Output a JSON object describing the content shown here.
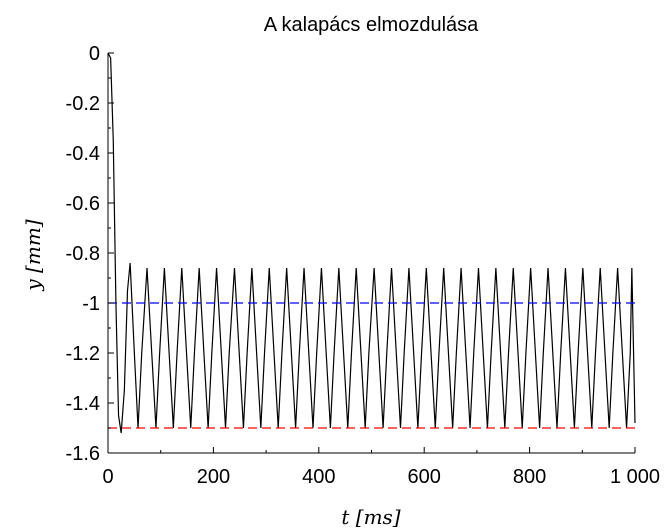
{
  "chart_data": {
    "type": "line",
    "title": "A kalapács elmozdulása",
    "xlabel": "t  [ms]",
    "ylabel": "y  [mm]",
    "xlim": [
      0,
      1000
    ],
    "ylim": [
      -1.6,
      0
    ],
    "grid": false,
    "xticks": [
      "0",
      "200",
      "400",
      "600",
      "800",
      "1 000"
    ],
    "yticks": [
      "0",
      "-0.2",
      "-0.4",
      "-0.6",
      "-0.8",
      "-1",
      "-1.2",
      "-1.4",
      "-1.6"
    ],
    "series": [
      {
        "color": "#000000",
        "style": "solid",
        "description_points": [
          [
            0,
            0
          ],
          [
            5,
            -0.02
          ],
          [
            10,
            -0.35
          ],
          [
            15,
            -1.0
          ],
          [
            20,
            -1.45
          ],
          [
            25,
            -1.52
          ],
          [
            31,
            -1.35
          ],
          [
            37,
            -0.95
          ],
          [
            42,
            -0.84
          ],
          [
            50,
            -1.2
          ],
          [
            57,
            -1.5
          ],
          [
            64,
            -1.2
          ],
          [
            74,
            -0.86
          ],
          [
            83,
            -1.2
          ],
          [
            91,
            -1.5
          ],
          [
            98,
            -1.2
          ],
          [
            107,
            -0.86
          ],
          [
            116,
            -1.2
          ],
          [
            124,
            -1.5
          ],
          [
            131,
            -1.2
          ],
          [
            140,
            -0.86
          ],
          [
            149,
            -1.2
          ],
          [
            157,
            -1.5
          ],
          [
            164,
            -1.2
          ],
          [
            173,
            -0.86
          ],
          [
            182,
            -1.2
          ],
          [
            190,
            -1.5
          ],
          [
            197,
            -1.2
          ],
          [
            206,
            -0.86
          ],
          [
            215,
            -1.2
          ],
          [
            223,
            -1.5
          ],
          [
            230,
            -1.2
          ],
          [
            240,
            -0.86
          ],
          [
            249,
            -1.2
          ],
          [
            257,
            -1.5
          ],
          [
            264,
            -1.2
          ],
          [
            273,
            -0.86
          ],
          [
            282,
            -1.2
          ],
          [
            290,
            -1.5
          ],
          [
            297,
            -1.2
          ],
          [
            306,
            -0.86
          ],
          [
            315,
            -1.2
          ],
          [
            323,
            -1.5
          ],
          [
            330,
            -1.2
          ],
          [
            339,
            -0.86
          ],
          [
            348,
            -1.2
          ],
          [
            356,
            -1.5
          ],
          [
            363,
            -1.2
          ],
          [
            372,
            -0.86
          ],
          [
            381,
            -1.2
          ],
          [
            389,
            -1.5
          ],
          [
            396,
            -1.2
          ],
          [
            405,
            -0.86
          ],
          [
            414,
            -1.2
          ],
          [
            422,
            -1.5
          ],
          [
            429,
            -1.2
          ],
          [
            438,
            -0.86
          ],
          [
            447,
            -1.2
          ],
          [
            455,
            -1.5
          ],
          [
            462,
            -1.2
          ],
          [
            471,
            -0.86
          ],
          [
            480,
            -1.2
          ],
          [
            488,
            -1.5
          ],
          [
            495,
            -1.2
          ],
          [
            505,
            -0.86
          ],
          [
            514,
            -1.2
          ],
          [
            522,
            -1.5
          ],
          [
            529,
            -1.2
          ],
          [
            538,
            -0.86
          ],
          [
            547,
            -1.2
          ],
          [
            555,
            -1.5
          ],
          [
            562,
            -1.2
          ],
          [
            571,
            -0.86
          ],
          [
            580,
            -1.2
          ],
          [
            588,
            -1.5
          ],
          [
            595,
            -1.2
          ],
          [
            604,
            -0.86
          ],
          [
            613,
            -1.2
          ],
          [
            621,
            -1.5
          ],
          [
            628,
            -1.2
          ],
          [
            637,
            -0.86
          ],
          [
            646,
            -1.2
          ],
          [
            654,
            -1.5
          ],
          [
            661,
            -1.2
          ],
          [
            670,
            -0.86
          ],
          [
            679,
            -1.2
          ],
          [
            687,
            -1.5
          ],
          [
            694,
            -1.2
          ],
          [
            703,
            -0.86
          ],
          [
            712,
            -1.2
          ],
          [
            720,
            -1.5
          ],
          [
            727,
            -1.2
          ],
          [
            736,
            -0.86
          ],
          [
            745,
            -1.2
          ],
          [
            753,
            -1.5
          ],
          [
            760,
            -1.2
          ],
          [
            769,
            -0.86
          ],
          [
            778,
            -1.2
          ],
          [
            786,
            -1.5
          ],
          [
            793,
            -1.2
          ],
          [
            802,
            -0.86
          ],
          [
            811,
            -1.2
          ],
          [
            819,
            -1.5
          ],
          [
            826,
            -1.2
          ],
          [
            835,
            -0.86
          ],
          [
            844,
            -1.2
          ],
          [
            852,
            -1.5
          ],
          [
            859,
            -1.2
          ],
          [
            868,
            -0.86
          ],
          [
            877,
            -1.2
          ],
          [
            885,
            -1.5
          ],
          [
            892,
            -1.2
          ],
          [
            901,
            -0.86
          ],
          [
            910,
            -1.2
          ],
          [
            918,
            -1.5
          ],
          [
            925,
            -1.2
          ],
          [
            934,
            -0.86
          ],
          [
            943,
            -1.2
          ],
          [
            951,
            -1.5
          ],
          [
            958,
            -1.2
          ],
          [
            967,
            -0.86
          ],
          [
            976,
            -1.2
          ],
          [
            984,
            -1.5
          ],
          [
            991,
            -1.2
          ],
          [
            994,
            -0.86
          ],
          [
            1000,
            -1.48
          ]
        ]
      },
      {
        "color": "#0000ff",
        "style": "dashed",
        "x": [
          0,
          1000
        ],
        "y": [
          -1,
          -1
        ]
      },
      {
        "color": "#ff0000",
        "style": "dashed",
        "x": [
          0,
          1000
        ],
        "y": [
          -1.5,
          -1.5
        ]
      }
    ]
  }
}
